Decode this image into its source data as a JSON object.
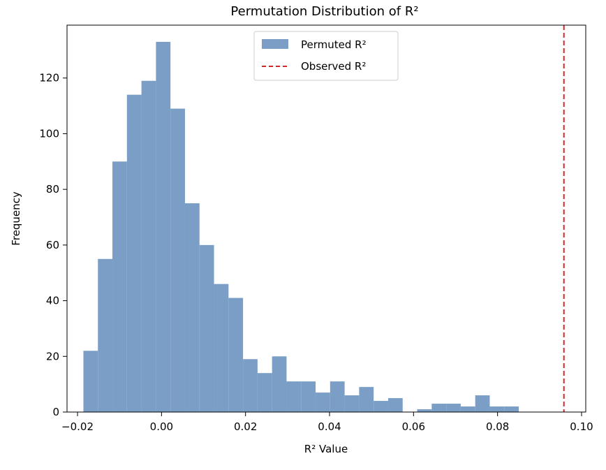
{
  "chart_data": {
    "type": "bar",
    "title": "Permutation Distribution of R²",
    "xlabel": "R² Value",
    "ylabel": "Frequency",
    "xlim": [
      -0.0225,
      0.101
    ],
    "ylim": [
      0,
      139
    ],
    "xticks": [
      -0.02,
      0.0,
      0.02,
      0.04,
      0.06,
      0.08,
      0.1
    ],
    "xtick_labels": [
      "−0.02",
      "0.00",
      "0.02",
      "0.04",
      "0.06",
      "0.08",
      "0.10"
    ],
    "yticks": [
      0,
      20,
      40,
      60,
      80,
      100,
      120
    ],
    "ytick_labels": [
      "0",
      "20",
      "40",
      "60",
      "80",
      "100",
      "120"
    ],
    "grid": false,
    "legend_position": "top-center",
    "series": [
      {
        "name": "Permuted R²",
        "kind": "histogram",
        "color": "#7a9ec6",
        "bin_start": -0.0186,
        "bin_width": 0.003455,
        "counts": [
          22,
          55,
          90,
          114,
          119,
          133,
          109,
          75,
          60,
          46,
          41,
          19,
          14,
          20,
          11,
          11,
          7,
          11,
          6,
          9,
          4,
          5,
          0,
          1,
          3,
          3,
          2,
          6,
          2,
          2
        ]
      },
      {
        "name": "Observed R²",
        "kind": "vline",
        "color": "#d62728",
        "x": 0.0958
      }
    ]
  }
}
